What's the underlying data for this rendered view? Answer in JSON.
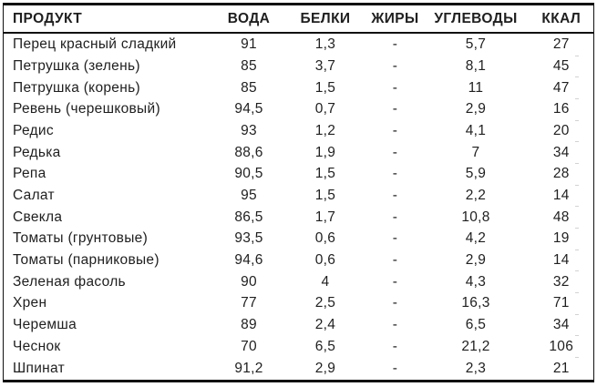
{
  "table": {
    "columns": [
      "ПРОДУКТ",
      "ВОДА",
      "БЕЛКИ",
      "ЖИРЫ",
      "УГЛЕВОДЫ",
      "ККАЛ"
    ],
    "rows": [
      [
        "Перец красный сладкий",
        "91",
        "1,3",
        "-",
        "5,7",
        "27"
      ],
      [
        "Петрушка (зелень)",
        "85",
        "3,7",
        "-",
        "8,1",
        "45"
      ],
      [
        "Петрушка (корень)",
        "85",
        "1,5",
        "-",
        "11",
        "47"
      ],
      [
        "Ревень (черешковый)",
        "94,5",
        "0,7",
        "-",
        "2,9",
        "16"
      ],
      [
        "Редис",
        "93",
        "1,2",
        "-",
        "4,1",
        "20"
      ],
      [
        "Редька",
        "88,6",
        "1,9",
        "-",
        "7",
        "34"
      ],
      [
        "Репа",
        "90,5",
        "1,5",
        "-",
        "5,9",
        "28"
      ],
      [
        "Салат",
        "95",
        "1,5",
        "-",
        "2,2",
        "14"
      ],
      [
        "Свекла",
        "86,5",
        "1,7",
        "-",
        "10,8",
        "48"
      ],
      [
        "Томаты (грунтовые)",
        "93,5",
        "0,6",
        "-",
        "4,2",
        "19"
      ],
      [
        "Томаты (парниковые)",
        "94,6",
        "0,6",
        "-",
        "2,9",
        "14"
      ],
      [
        "Зеленая фасоль",
        "90",
        "4",
        "-",
        "4,3",
        "32"
      ],
      [
        "Хрен",
        "77",
        "2,5",
        "-",
        "16,3",
        "71"
      ],
      [
        "Черемша",
        "89",
        "2,4",
        "-",
        "6,5",
        "34"
      ],
      [
        "Чеснок",
        "70",
        "6,5",
        "-",
        "21,2",
        "106"
      ],
      [
        "Шпинат",
        "91,2",
        "2,9",
        "-",
        "2,3",
        "21"
      ]
    ],
    "border_color": "#111111",
    "text_color": "#1f1f1f",
    "background_color": "#ffffff"
  }
}
